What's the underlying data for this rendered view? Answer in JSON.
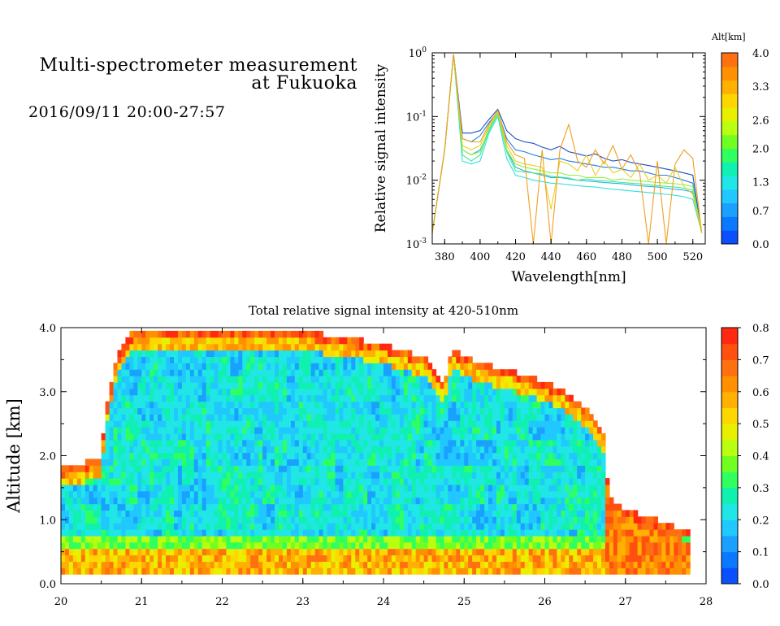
{
  "header": {
    "title_line1": "Multi-spectrometer measurement",
    "title_line2": "at Fukuoka",
    "datetime": "2016/09/11 20:00-27:57"
  },
  "chart_data": [
    {
      "type": "line",
      "title": "",
      "xlabel": "Wavelength[nm]",
      "ylabel": "Relative signal intensity",
      "yscale": "log",
      "xlim": [
        373,
        527
      ],
      "ylim": [
        0.001,
        1
      ],
      "xticks": [
        "380",
        "400",
        "420",
        "440",
        "460",
        "480",
        "500",
        "520"
      ],
      "yticks": [
        "10^0",
        "10^-1",
        "10^-2",
        "10^-3"
      ],
      "colorbar": {
        "label": "Alt[km]",
        "ticks": [
          "4.0",
          "3.3",
          "2.6",
          "2.0",
          "1.3",
          "0.7",
          "0.0"
        ],
        "range": [
          0,
          4
        ],
        "colors": [
          "#0a50ff",
          "#0a78ff",
          "#1aa0ff",
          "#20c8ff",
          "#20e6e6",
          "#10f0b0",
          "#30ff60",
          "#70ff20",
          "#b8ff10",
          "#e8f000",
          "#ffd700",
          "#ffb000",
          "#ff9000",
          "#ff7010"
        ]
      },
      "x": [
        373,
        380,
        385,
        390,
        395,
        400,
        405,
        410,
        415,
        420,
        425,
        430,
        435,
        440,
        445,
        450,
        455,
        460,
        465,
        470,
        475,
        480,
        485,
        490,
        495,
        500,
        505,
        510,
        515,
        520,
        525
      ],
      "series": [
        {
          "color": "#1a4fc8",
          "values": [
            0.0015,
            0.03,
            0.95,
            0.055,
            0.055,
            0.06,
            0.09,
            0.13,
            0.06,
            0.045,
            0.04,
            0.038,
            0.033,
            0.03,
            0.034,
            0.028,
            0.026,
            0.024,
            0.026,
            0.022,
            0.02,
            0.021,
            0.019,
            0.018,
            0.017,
            0.016,
            0.015,
            0.014,
            0.013,
            0.012,
            0.0015
          ]
        },
        {
          "color": "#1e7fe0",
          "values": [
            0.0015,
            0.03,
            0.95,
            0.045,
            0.04,
            0.05,
            0.08,
            0.12,
            0.045,
            0.03,
            0.028,
            0.025,
            0.023,
            0.021,
            0.022,
            0.02,
            0.019,
            0.018,
            0.017,
            0.016,
            0.016,
            0.015,
            0.014,
            0.014,
            0.013,
            0.012,
            0.012,
            0.011,
            0.01,
            0.009,
            0.0015
          ]
        },
        {
          "color": "#20b0e8",
          "values": [
            0.0015,
            0.03,
            0.95,
            0.03,
            0.025,
            0.03,
            0.06,
            0.11,
            0.03,
            0.016,
            0.014,
            0.013,
            0.012,
            0.011,
            0.011,
            0.0105,
            0.01,
            0.0098,
            0.0095,
            0.0092,
            0.009,
            0.0088,
            0.0085,
            0.0082,
            0.008,
            0.0078,
            0.0075,
            0.0072,
            0.007,
            0.0065,
            0.0015
          ]
        },
        {
          "color": "#30e0e0",
          "values": [
            0.0015,
            0.03,
            0.95,
            0.02,
            0.018,
            0.02,
            0.055,
            0.1,
            0.022,
            0.012,
            0.011,
            0.01,
            0.0095,
            0.009,
            0.0088,
            0.0085,
            0.0082,
            0.008,
            0.0078,
            0.0075,
            0.0072,
            0.007,
            0.0068,
            0.0066,
            0.0064,
            0.0062,
            0.006,
            0.0058,
            0.0055,
            0.005,
            0.0015
          ]
        },
        {
          "color": "#40e890",
          "values": [
            0.0015,
            0.03,
            0.95,
            0.025,
            0.02,
            0.025,
            0.06,
            0.11,
            0.028,
            0.014,
            0.0135,
            0.013,
            0.0125,
            0.0115,
            0.0112,
            0.0108,
            0.01,
            0.0105,
            0.01,
            0.0098,
            0.0095,
            0.0092,
            0.009,
            0.0088,
            0.0085,
            0.0082,
            0.008,
            0.0078,
            0.0075,
            0.007,
            0.0015
          ]
        },
        {
          "color": "#90f040",
          "values": [
            0.0015,
            0.03,
            0.95,
            0.03,
            0.025,
            0.028,
            0.065,
            0.115,
            0.03,
            0.018,
            0.016,
            0.015,
            0.014,
            0.013,
            0.013,
            0.012,
            0.012,
            0.011,
            0.011,
            0.011,
            0.01,
            0.0105,
            0.01,
            0.0098,
            0.0095,
            0.0092,
            0.009,
            0.0088,
            0.0085,
            0.008,
            0.0015
          ]
        },
        {
          "color": "#e8d020",
          "values": [
            0.0015,
            0.03,
            0.95,
            0.035,
            0.03,
            0.035,
            0.07,
            0.12,
            0.035,
            0.02,
            0.018,
            0.017,
            0.016,
            0.0035,
            0.02,
            0.018,
            0.014,
            0.025,
            0.012,
            0.02,
            0.013,
            0.015,
            0.011,
            0.018,
            0.01,
            0.012,
            0.009,
            0.016,
            0.008,
            0.006,
            0.0015
          ]
        },
        {
          "color": "#f0a020",
          "values": [
            0.0015,
            0.03,
            0.95,
            0.045,
            0.04,
            0.04,
            0.075,
            0.125,
            0.04,
            0.025,
            0.022,
            0.001,
            0.03,
            0.001,
            0.03,
            0.075,
            0.02,
            0.016,
            0.03,
            0.018,
            0.035,
            0.015,
            0.025,
            0.013,
            0.001,
            0.02,
            0.001,
            0.018,
            0.03,
            0.022,
            0.0015
          ]
        }
      ]
    },
    {
      "type": "heatmap",
      "title": "Total relative signal intensity at 420-510nm",
      "xlabel": "",
      "ylabel": "Altitude [km]",
      "xlim": [
        20,
        28
      ],
      "ylim": [
        0,
        4
      ],
      "xticks": [
        "20",
        "21",
        "22",
        "23",
        "24",
        "25",
        "26",
        "27",
        "28"
      ],
      "yticks": [
        "0.0",
        "1.0",
        "2.0",
        "3.0",
        "4.0"
      ],
      "colorbar": {
        "ticks": [
          "0.8",
          "0.7",
          "0.6",
          "0.5",
          "0.4",
          "0.3",
          "0.2",
          "0.1",
          "0.0"
        ],
        "range": [
          0,
          0.8
        ],
        "colors": [
          "#0a50ff",
          "#0a78ff",
          "#1aa0ff",
          "#20c8ff",
          "#20e6e6",
          "#10f0b0",
          "#30ff60",
          "#70ff20",
          "#b8ff10",
          "#e8f000",
          "#ffd700",
          "#ffb000",
          "#ff9000",
          "#ff7010",
          "#ff5010",
          "#ff2a10"
        ]
      },
      "cloud_top_km": [
        {
          "t": 20.0,
          "z": 1.75
        },
        {
          "t": 20.3,
          "z": 1.85
        },
        {
          "t": 20.5,
          "z": 1.95
        },
        {
          "t": 20.55,
          "z": 2.6
        },
        {
          "t": 20.7,
          "z": 3.5
        },
        {
          "t": 20.9,
          "z": 3.9
        },
        {
          "t": 21.5,
          "z": 3.95
        },
        {
          "t": 22.5,
          "z": 3.95
        },
        {
          "t": 23.0,
          "z": 3.9
        },
        {
          "t": 23.5,
          "z": 3.8
        },
        {
          "t": 24.0,
          "z": 3.7
        },
        {
          "t": 24.5,
          "z": 3.5
        },
        {
          "t": 24.75,
          "z": 3.1
        },
        {
          "t": 24.85,
          "z": 3.6
        },
        {
          "t": 25.2,
          "z": 3.4
        },
        {
          "t": 25.5,
          "z": 3.3
        },
        {
          "t": 25.8,
          "z": 3.2
        },
        {
          "t": 26.2,
          "z": 3.0
        },
        {
          "t": 26.5,
          "z": 2.7
        },
        {
          "t": 26.75,
          "z": 2.3
        },
        {
          "t": 26.78,
          "z": 1.5
        },
        {
          "t": 26.85,
          "z": 1.25
        },
        {
          "t": 27.0,
          "z": 1.1
        },
        {
          "t": 27.3,
          "z": 1.0
        },
        {
          "t": 27.5,
          "z": 0.9
        },
        {
          "t": 27.75,
          "z": 0.75
        },
        {
          "t": 27.8,
          "z": 0.75
        }
      ]
    }
  ]
}
